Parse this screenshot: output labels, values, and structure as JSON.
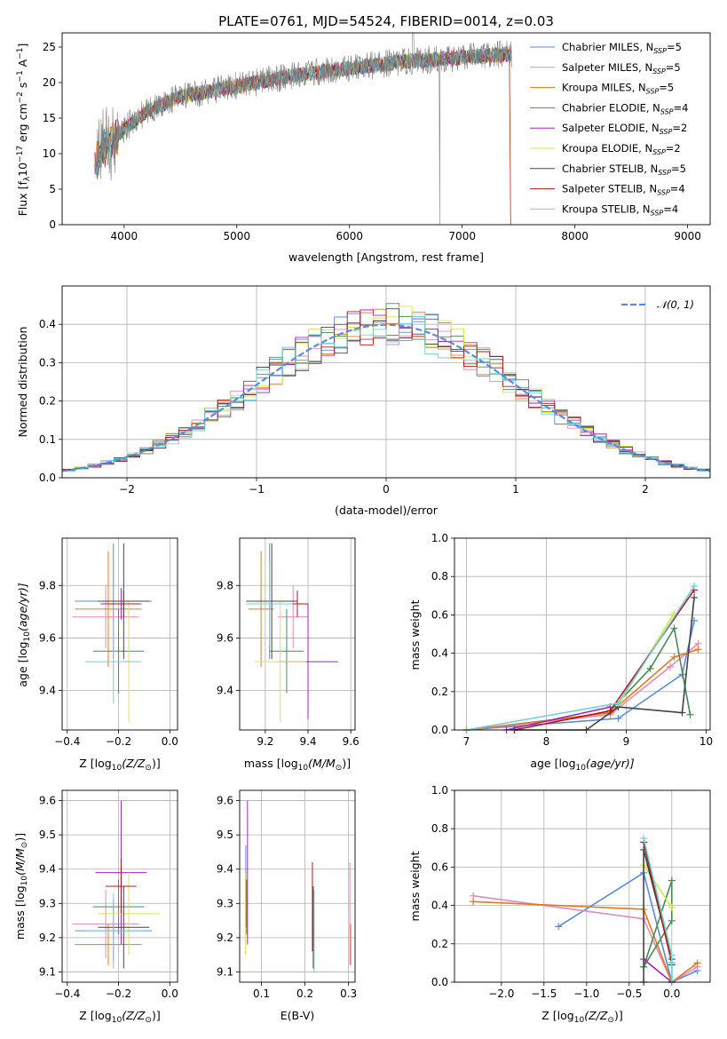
{
  "colors": {
    "chabrier_miles": "#5b8bd9",
    "salpeter_miles": "#e08ab8",
    "kroupa_miles": "#e07a20",
    "chabrier_elodie": "#4a8a55",
    "salpeter_elodie": "#9b2bb8",
    "kroupa_elodie": "#d8e64a",
    "chabrier_stelib": "#444444",
    "salpeter_stelib": "#b01818",
    "kroupa_stelib": "#70d0d8",
    "spectrum": "#808080",
    "normal": "#5b8bd9"
  },
  "chart_data": [
    {
      "id": "spectrum",
      "type": "line",
      "title": "PLATE=0761, MJD=54524, FIBERID=0014, z=0.03",
      "xlabel": "wavelength [Angstrom, rest frame]",
      "ylabel_main": "Flux [f",
      "ylabel_sub": "λ",
      "ylabel_rest": "10",
      "ylabel_exp1": "−17",
      "ylabel_rest2": " erg cm",
      "ylabel_exp2": "−2",
      "ylabel_rest3": " s",
      "ylabel_exp3": "−1",
      "ylabel_rest4": " A",
      "ylabel_exp4": "−1",
      "ylabel_end": "]",
      "xlim": [
        3450,
        9200
      ],
      "ylim": [
        0,
        27
      ],
      "xticks": [
        4000,
        5000,
        6000,
        7000,
        8000,
        9000
      ],
      "yticks": [
        0,
        5,
        10,
        15,
        20,
        25
      ],
      "continuum_x": [
        3740,
        3800,
        3900,
        4000,
        4200,
        4500,
        5000,
        5500,
        6000,
        6500,
        7000,
        7400,
        7450
      ],
      "continuum_y": [
        8,
        10.5,
        12,
        13.5,
        16,
        18,
        19.5,
        21,
        22,
        23,
        23.5,
        24,
        24
      ],
      "legend": [
        {
          "name": "Chabrier MILES, N",
          "sub": "SSP",
          "val": "=5"
        },
        {
          "name": "Salpeter MILES, N",
          "sub": "SSP",
          "val": "=5"
        },
        {
          "name": "Kroupa MILES, N",
          "sub": "SSP",
          "val": "=5"
        },
        {
          "name": "Chabrier ELODIE, N",
          "sub": "SSP",
          "val": "=4"
        },
        {
          "name": "Salpeter ELODIE, N",
          "sub": "SSP",
          "val": "=2"
        },
        {
          "name": "Kroupa ELODIE, N",
          "sub": "SSP",
          "val": "=2"
        },
        {
          "name": "Chabrier STELIB, N",
          "sub": "SSP",
          "val": "=5"
        },
        {
          "name": "Salpeter STELIB, N",
          "sub": "SSP",
          "val": "=4"
        },
        {
          "name": "Kroupa STELIB, N",
          "sub": "SSP",
          "val": "=4"
        }
      ]
    },
    {
      "id": "residuals",
      "type": "area",
      "xlabel": "(data-model)/error",
      "ylabel": "Normed distribution",
      "xlim": [
        -2.5,
        2.5
      ],
      "ylim": [
        0,
        0.5
      ],
      "xticks": [
        -2,
        -1,
        0,
        1,
        2
      ],
      "xticklabels": [
        "−2",
        "−1",
        "0",
        "1",
        "2"
      ],
      "yticks": [
        0,
        0.1,
        0.2,
        0.3,
        0.4
      ],
      "yticklabels": [
        "0.0",
        "0.1",
        "0.2",
        "0.3",
        "0.4"
      ],
      "bin_width": 0.1,
      "legend_label": "𝒩(0, 1)"
    },
    {
      "id": "z_age",
      "type": "scatter",
      "xlabel": "Z [log",
      "xlabel_sub": "10",
      "xlabel_rest": "(Z/Z",
      "xlabel_sun": "⊙",
      "xlabel_end": ")]",
      "ylabel": "age  [log",
      "ylabel_sub": "10",
      "ylabel_rest": "(age/yr)]",
      "xlim": [
        -0.42,
        0.03
      ],
      "ylim": [
        9.25,
        9.98
      ],
      "xticks": [
        -0.4,
        -0.2,
        0.0
      ],
      "xticklabels": [
        "−0.4",
        "−0.2",
        "0.0"
      ],
      "yticks": [
        9.4,
        9.6,
        9.8
      ],
      "yticklabels": [
        "9.4",
        "9.6",
        "9.8"
      ],
      "points": [
        {
          "s": "chabrier_miles",
          "x": -0.22,
          "xe": 0.15,
          "y": 9.74,
          "ye": 0.22
        },
        {
          "s": "salpeter_miles",
          "x": -0.25,
          "xe": 0.13,
          "y": 9.68,
          "ye": 0.12
        },
        {
          "s": "kroupa_miles",
          "x": -0.24,
          "xe": 0.13,
          "y": 9.71,
          "ye": 0.22
        },
        {
          "s": "chabrier_elodie",
          "x": -0.2,
          "xe": 0.1,
          "y": 9.55,
          "ye": 0.16
        },
        {
          "s": "salpeter_elodie",
          "x": -0.19,
          "xe": 0.08,
          "y": 9.73,
          "ye": 0.06
        },
        {
          "s": "kroupa_elodie",
          "x": -0.16,
          "xe": 0.02,
          "y": 9.51,
          "ye": 0.23
        },
        {
          "s": "chabrier_stelib",
          "x": -0.18,
          "xe": 0.1,
          "y": 9.74,
          "ye": 0.22
        },
        {
          "s": "salpeter_stelib",
          "x": -0.18,
          "xe": 0.06,
          "y": 9.73,
          "ye": 0.05
        },
        {
          "s": "kroupa_stelib",
          "x": -0.22,
          "xe": 0.11,
          "y": 9.51,
          "ye": 0.16
        }
      ]
    },
    {
      "id": "mass_age",
      "type": "scatter",
      "xlabel": "mass [log",
      "xlabel_sub": "10",
      "xlabel_rest": "(M/M",
      "xlabel_sun": "⊙",
      "xlabel_end": ")]",
      "xlim": [
        9.08,
        9.62
      ],
      "ylim": [
        9.25,
        9.98
      ],
      "xticks": [
        9.2,
        9.4,
        9.6
      ],
      "xticklabels": [
        "9.2",
        "9.4",
        "9.6"
      ],
      "yticks": [
        9.4,
        9.6,
        9.8
      ],
      "yticklabels": [
        "9.4",
        "9.6",
        "9.8"
      ],
      "points": [
        {
          "s": "chabrier_miles",
          "x": 9.22,
          "xe": 0.09,
          "y": 9.74,
          "ye": 0.22
        },
        {
          "s": "salpeter_miles",
          "x": 9.33,
          "xe": 0.07,
          "y": 9.68,
          "ye": 0.12
        },
        {
          "s": "kroupa_miles",
          "x": 9.18,
          "xe": 0.06,
          "y": 9.71,
          "ye": 0.22
        },
        {
          "s": "chabrier_elodie",
          "x": 9.3,
          "xe": 0.08,
          "y": 9.55,
          "ye": 0.16
        },
        {
          "s": "salpeter_elodie",
          "x": 9.4,
          "xe": 0.14,
          "y": 9.51,
          "ye": 0.22
        },
        {
          "s": "kroupa_elodie",
          "x": 9.27,
          "xe": 0.12,
          "y": 9.51,
          "ye": 0.23
        },
        {
          "s": "chabrier_stelib",
          "x": 9.23,
          "xe": 0.12,
          "y": 9.74,
          "ye": 0.22
        },
        {
          "s": "salpeter_stelib",
          "x": 9.35,
          "xe": 0.05,
          "y": 9.73,
          "ye": 0.05
        },
        {
          "s": "kroupa_stelib",
          "x": 9.22,
          "xe": 0.11,
          "y": 9.73,
          "ye": 0.16
        }
      ]
    },
    {
      "id": "age_weight",
      "type": "line",
      "xlabel": "age  [log",
      "xlabel_sub": "10",
      "xlabel_rest": "(age/yr)]",
      "ylabel": "mass weight",
      "xlim": [
        6.85,
        10.05
      ],
      "ylim": [
        0,
        1
      ],
      "xticks": [
        7,
        8,
        9,
        10
      ],
      "xticklabels": [
        "7",
        "8",
        "9",
        "10"
      ],
      "yticks": [
        0,
        0.2,
        0.4,
        0.6,
        0.8,
        1.0
      ],
      "yticklabels": [
        "0.0",
        "0.2",
        "0.4",
        "0.6",
        "0.8",
        "1.0"
      ],
      "series": [
        {
          "s": "chabrier_miles",
          "x": [
            7.0,
            8.9,
            9.7,
            9.85
          ],
          "y": [
            0.0,
            0.06,
            0.29,
            0.57
          ]
        },
        {
          "s": "salpeter_miles",
          "x": [
            7.0,
            8.8,
            9.55,
            9.9
          ],
          "y": [
            0.0,
            0.08,
            0.33,
            0.45
          ]
        },
        {
          "s": "kroupa_miles",
          "x": [
            7.0,
            8.8,
            9.6,
            9.9
          ],
          "y": [
            0.0,
            0.09,
            0.38,
            0.42
          ]
        },
        {
          "s": "chabrier_elodie",
          "x": [
            8.8,
            9.3,
            9.6,
            9.8
          ],
          "y": [
            0.1,
            0.32,
            0.53,
            0.08
          ]
        },
        {
          "s": "salpeter_elodie",
          "x": [
            7.5,
            8.8
          ],
          "y": [
            0.0,
            0.12
          ]
        },
        {
          "s": "kroupa_elodie",
          "x": [
            8.9,
            9.6
          ],
          "y": [
            0.13,
            0.61
          ]
        },
        {
          "s": "chabrier_stelib",
          "x": [
            7.6,
            8.5,
            8.9,
            9.7,
            9.85
          ],
          "y": [
            0.0,
            0.0,
            0.12,
            0.09,
            0.69
          ]
        },
        {
          "s": "salpeter_stelib",
          "x": [
            7.6,
            8.8,
            9.85
          ],
          "y": [
            0.0,
            0.1,
            0.73
          ]
        },
        {
          "s": "kroupa_stelib",
          "x": [
            7.0,
            8.9,
            9.85
          ],
          "y": [
            0.0,
            0.14,
            0.75
          ]
        }
      ]
    },
    {
      "id": "z_mass",
      "type": "scatter",
      "xlabel": "Z [log",
      "xlabel_sub": "10",
      "xlabel_rest": "(Z/Z",
      "xlabel_sun": "⊙",
      "xlabel_end": ")]",
      "ylabel": "mass [log",
      "ylabel_sub": "10",
      "ylabel_rest": "(M/M",
      "ylabel_sun": "⊙",
      "ylabel_end": ")]",
      "xlim": [
        -0.42,
        0.03
      ],
      "ylim": [
        9.07,
        9.63
      ],
      "xticks": [
        -0.4,
        -0.2,
        0.0
      ],
      "xticklabels": [
        "−0.4",
        "−0.2",
        "0.0"
      ],
      "yticks": [
        9.1,
        9.2,
        9.3,
        9.4,
        9.5,
        9.6
      ],
      "yticklabels": [
        "9.1",
        "9.2",
        "9.3",
        "9.4",
        "9.5",
        "9.6"
      ],
      "points": [
        {
          "s": "chabrier_miles",
          "x": -0.22,
          "xe": 0.15,
          "y": 9.22,
          "ye": 0.09
        },
        {
          "s": "salpeter_miles",
          "x": -0.25,
          "xe": 0.13,
          "y": 9.24,
          "ye": 0.1
        },
        {
          "s": "kroupa_miles",
          "x": -0.24,
          "xe": 0.13,
          "y": 9.18,
          "ye": 0.06
        },
        {
          "s": "chabrier_elodie",
          "x": -0.2,
          "xe": 0.1,
          "y": 9.29,
          "ye": 0.08
        },
        {
          "s": "salpeter_elodie",
          "x": -0.19,
          "xe": 0.1,
          "y": 9.39,
          "ye": 0.21
        },
        {
          "s": "kroupa_elodie",
          "x": -0.16,
          "xe": 0.12,
          "y": 9.27,
          "ye": 0.12
        },
        {
          "s": "chabrier_stelib",
          "x": -0.18,
          "xe": 0.1,
          "y": 9.23,
          "ye": 0.12
        },
        {
          "s": "salpeter_stelib",
          "x": -0.19,
          "xe": 0.06,
          "y": 9.35,
          "ye": 0.08
        },
        {
          "s": "kroupa_stelib",
          "x": -0.22,
          "xe": 0.11,
          "y": 9.22,
          "ye": 0.11
        }
      ]
    },
    {
      "id": "ebv_mass",
      "type": "scatter",
      "xlabel": "E(B-V)",
      "xlim": [
        0.05,
        0.315
      ],
      "ylim": [
        9.07,
        9.63
      ],
      "xticks": [
        0.1,
        0.2,
        0.3
      ],
      "xticklabels": [
        "0.1",
        "0.2",
        "0.3"
      ],
      "yticks": [
        9.1,
        9.2,
        9.3,
        9.4,
        9.5,
        9.6
      ],
      "yticklabels": [
        "9.1",
        "9.2",
        "9.3",
        "9.4",
        "9.5",
        "9.6"
      ],
      "points": [
        {
          "s": "chabrier_miles",
          "x": 0.064,
          "xe": 0.0,
          "y": 9.35,
          "ye": 0.12
        },
        {
          "s": "salpeter_miles",
          "x": 0.303,
          "xe": 0.0,
          "y": 9.27,
          "ye": 0.15
        },
        {
          "s": "kroupa_miles",
          "x": 0.305,
          "xe": 0.0,
          "y": 9.18,
          "ye": 0.06
        },
        {
          "s": "chabrier_elodie",
          "x": 0.066,
          "xe": 0.0,
          "y": 9.29,
          "ye": 0.08
        },
        {
          "s": "salpeter_elodie",
          "x": 0.068,
          "xe": 0.0,
          "y": 9.39,
          "ye": 0.21
        },
        {
          "s": "kroupa_elodie",
          "x": 0.063,
          "xe": 0.0,
          "y": 9.27,
          "ye": 0.12
        },
        {
          "s": "chabrier_stelib",
          "x": 0.219,
          "xe": 0.0,
          "y": 9.23,
          "ye": 0.12
        },
        {
          "s": "salpeter_stelib",
          "x": 0.217,
          "xe": 0.0,
          "y": 9.29,
          "ye": 0.13
        },
        {
          "s": "kroupa_stelib",
          "x": 0.221,
          "xe": 0.0,
          "y": 9.22,
          "ye": 0.12
        }
      ]
    },
    {
      "id": "z_weight",
      "type": "line",
      "xlabel": "Z [log",
      "xlabel_sub": "10",
      "xlabel_rest": "(Z/Z",
      "xlabel_sun": "⊙",
      "xlabel_end": ")]",
      "ylabel": "mass weight",
      "xlim": [
        -2.55,
        0.45
      ],
      "ylim": [
        0,
        1
      ],
      "xticks": [
        -2.0,
        -1.5,
        -1.0,
        -0.5,
        0.0
      ],
      "xticklabels": [
        "−2.0",
        "−1.5",
        "−1.0",
        "−0.5",
        "0.0"
      ],
      "yticks": [
        0,
        0.2,
        0.4,
        0.6,
        0.8,
        1.0
      ],
      "yticklabels": [
        "0.0",
        "0.2",
        "0.4",
        "0.6",
        "0.8",
        "1.0"
      ],
      "series": [
        {
          "s": "chabrier_miles",
          "x": [
            -1.33,
            -0.33,
            0.0,
            0.3
          ],
          "y": [
            0.29,
            0.57,
            0.0,
            0.06
          ]
        },
        {
          "s": "salpeter_miles",
          "x": [
            -2.33,
            -0.33,
            0.0,
            0.3
          ],
          "y": [
            0.45,
            0.33,
            0.0,
            0.08
          ]
        },
        {
          "s": "kroupa_miles",
          "x": [
            -2.33,
            -0.33,
            0.0,
            0.3
          ],
          "y": [
            0.42,
            0.38,
            0.0,
            0.1
          ]
        },
        {
          "s": "chabrier_elodie",
          "x": [
            -0.33,
            0.0,
            0.0,
            -0.33
          ],
          "y": [
            0.08,
            0.32,
            0.53,
            0.08
          ]
        },
        {
          "s": "salpeter_elodie",
          "x": [
            -0.33,
            0.0
          ],
          "y": [
            0.12,
            0.0
          ]
        },
        {
          "s": "kroupa_elodie",
          "x": [
            -0.33,
            0.0
          ],
          "y": [
            0.61,
            0.39
          ]
        },
        {
          "s": "chabrier_stelib",
          "x": [
            -0.33,
            -0.33,
            0.0,
            0.0
          ],
          "y": [
            0.0,
            0.69,
            0.12,
            0.09
          ]
        },
        {
          "s": "salpeter_stelib",
          "x": [
            -0.33,
            0.0,
            0.0
          ],
          "y": [
            0.73,
            0.1,
            0.0
          ]
        },
        {
          "s": "kroupa_stelib",
          "x": [
            -0.33,
            0.0,
            0.0,
            0.0
          ],
          "y": [
            0.75,
            0.14,
            0.0,
            0.1
          ]
        }
      ]
    }
  ]
}
